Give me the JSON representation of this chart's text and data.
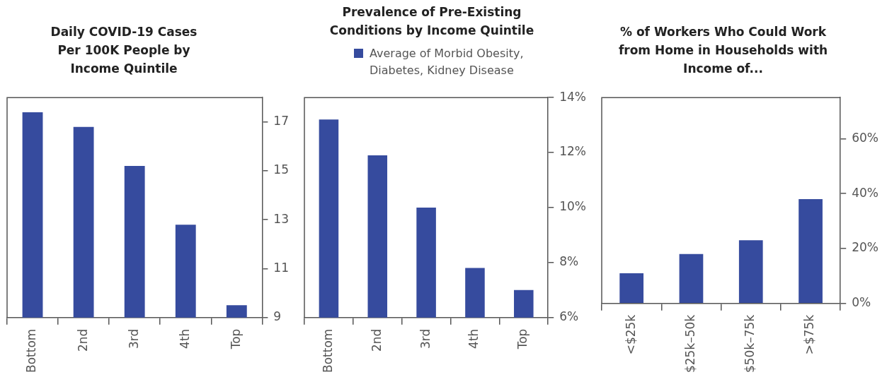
{
  "chart_data": [
    {
      "type": "bar",
      "title": "Daily COVID-19 Cases Per 100K People by Income Quintile",
      "categories": [
        "Bottom",
        "2nd",
        "3rd",
        "4th",
        "Top"
      ],
      "values": [
        17.4,
        16.8,
        15.2,
        12.8,
        9.5
      ],
      "color": "#364b9e",
      "ylim": [
        9,
        18
      ],
      "yticks": [
        9,
        11,
        13,
        15,
        17
      ],
      "grid": false
    },
    {
      "type": "bar",
      "title": "Prevalence of Pre-Existing Conditions by Income Quintile",
      "categories": [
        "Bottom",
        "2nd",
        "3rd",
        "4th",
        "Top"
      ],
      "series": [
        {
          "name": "Average of Morbid Obesity, Diabetes, Kidney Disease",
          "color": "#364b9e",
          "values": [
            13.2,
            11.9,
            10.0,
            7.8,
            7.0
          ]
        }
      ],
      "ylim": [
        6,
        14
      ],
      "yticks": [
        {
          "value": 6,
          "label": "6%"
        },
        {
          "value": 8,
          "label": "8%"
        },
        {
          "value": 10,
          "label": "10%"
        },
        {
          "value": 12,
          "label": "12%"
        },
        {
          "value": 14,
          "label": "14%"
        }
      ],
      "grid": false,
      "legend": "top"
    },
    {
      "type": "bar",
      "title": "% of Workers Who Could Work from Home in Households with Income of...",
      "categories": [
        "<$25k",
        "$25k–50k",
        "$50k–75k",
        ">$75k"
      ],
      "values": [
        11,
        18,
        23,
        38
      ],
      "color": "#364b9e",
      "ylim": [
        0,
        75
      ],
      "yticks": [
        {
          "value": 0,
          "label": "0%"
        },
        {
          "value": 20,
          "label": "20%"
        },
        {
          "value": 40,
          "label": "40%"
        },
        {
          "value": 60,
          "label": "60%"
        }
      ],
      "grid": false
    }
  ]
}
